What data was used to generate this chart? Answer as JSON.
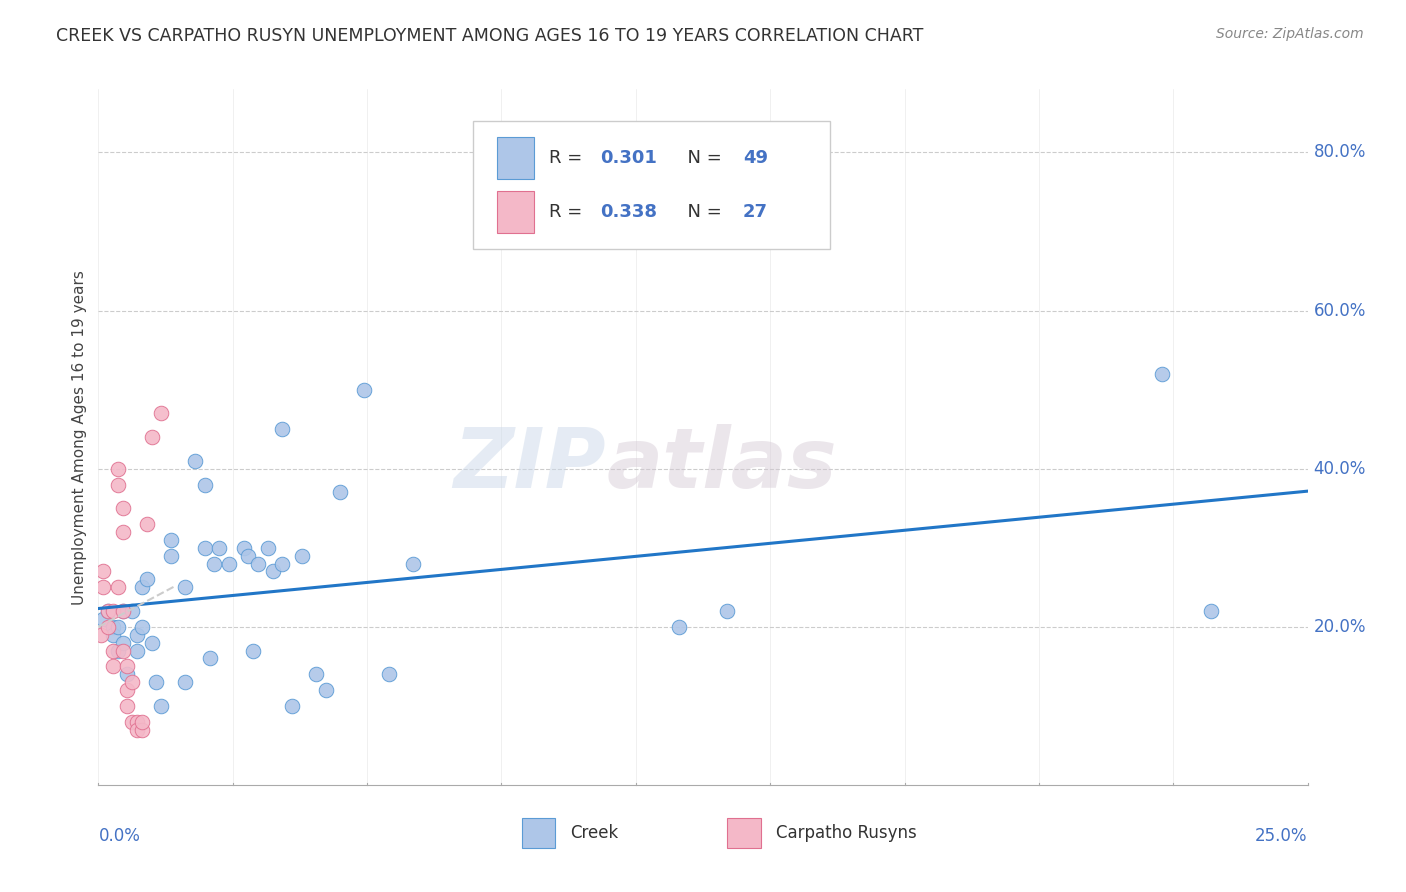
{
  "title": "CREEK VS CARPATHO RUSYN UNEMPLOYMENT AMONG AGES 16 TO 19 YEARS CORRELATION CHART",
  "source": "Source: ZipAtlas.com",
  "ylabel": "Unemployment Among Ages 16 to 19 years",
  "xmin": 0.0,
  "xmax": 0.25,
  "ymin": 0.0,
  "ymax": 0.88,
  "yticks": [
    0.2,
    0.4,
    0.6,
    0.8
  ],
  "ytick_labels": [
    "20.0%",
    "40.0%",
    "60.0%",
    "80.0%"
  ],
  "blue_color": "#4472c4",
  "creek_face": "#aec6e8",
  "creek_edge": "#5b9bd5",
  "rusyn_face": "#f4b8c8",
  "rusyn_edge": "#e07090",
  "creek_line": "#2176c7",
  "rusyn_dash": "#cccccc",
  "grid_color": "#cccccc",
  "creek_x": [
    0.001,
    0.002,
    0.003,
    0.003,
    0.004,
    0.004,
    0.005,
    0.005,
    0.006,
    0.007,
    0.008,
    0.008,
    0.009,
    0.009,
    0.01,
    0.011,
    0.012,
    0.013,
    0.015,
    0.015,
    0.018,
    0.018,
    0.02,
    0.022,
    0.022,
    0.023,
    0.024,
    0.025,
    0.027,
    0.03,
    0.031,
    0.032,
    0.033,
    0.035,
    0.036,
    0.038,
    0.038,
    0.04,
    0.042,
    0.045,
    0.047,
    0.05,
    0.055,
    0.06,
    0.065,
    0.12,
    0.13,
    0.22,
    0.23
  ],
  "creek_y": [
    0.21,
    0.22,
    0.2,
    0.19,
    0.17,
    0.2,
    0.18,
    0.22,
    0.14,
    0.22,
    0.17,
    0.19,
    0.25,
    0.2,
    0.26,
    0.18,
    0.13,
    0.1,
    0.29,
    0.31,
    0.13,
    0.25,
    0.41,
    0.38,
    0.3,
    0.16,
    0.28,
    0.3,
    0.28,
    0.3,
    0.29,
    0.17,
    0.28,
    0.3,
    0.27,
    0.45,
    0.28,
    0.1,
    0.29,
    0.14,
    0.12,
    0.37,
    0.5,
    0.14,
    0.28,
    0.2,
    0.22,
    0.52,
    0.22
  ],
  "rusyn_x": [
    0.0005,
    0.001,
    0.001,
    0.002,
    0.002,
    0.003,
    0.003,
    0.003,
    0.004,
    0.004,
    0.004,
    0.005,
    0.005,
    0.005,
    0.005,
    0.006,
    0.006,
    0.006,
    0.007,
    0.007,
    0.008,
    0.008,
    0.009,
    0.009,
    0.01,
    0.011,
    0.013
  ],
  "rusyn_y": [
    0.19,
    0.27,
    0.25,
    0.2,
    0.22,
    0.22,
    0.17,
    0.15,
    0.4,
    0.38,
    0.25,
    0.35,
    0.32,
    0.22,
    0.17,
    0.15,
    0.12,
    0.1,
    0.13,
    0.08,
    0.08,
    0.07,
    0.07,
    0.08,
    0.33,
    0.44,
    0.47
  ]
}
